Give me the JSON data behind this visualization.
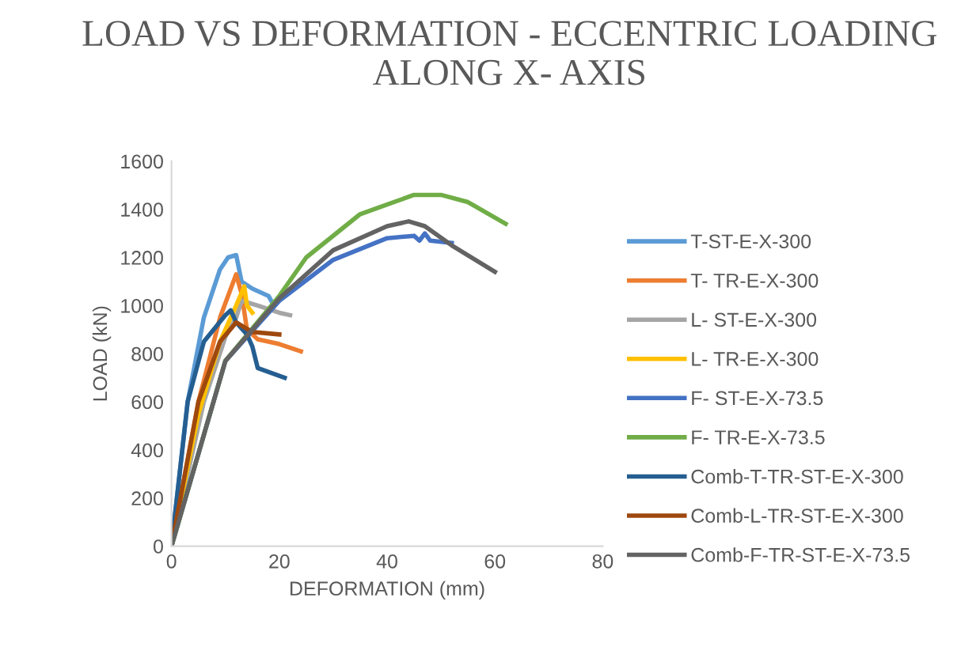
{
  "chart_data": {
    "type": "line",
    "title": "LOAD VS DEFORMATION - ECCENTRIC LOADING ALONG X- AXIS",
    "xlabel": "DEFORMATION (mm)",
    "ylabel": "LOAD (kN)",
    "xlim": [
      0,
      80
    ],
    "ylim": [
      0,
      1600
    ],
    "xticks": [
      0,
      20,
      40,
      60,
      80
    ],
    "yticks": [
      0,
      200,
      400,
      600,
      800,
      1000,
      1200,
      1400,
      1600
    ],
    "grid": false,
    "legend": "right",
    "marker": "none",
    "line_style": "solid",
    "series": [
      {
        "name": "T-ST-E-X-300",
        "color": "#5b9bd5",
        "x": [
          0,
          3,
          6,
          9,
          10.5,
          12,
          13,
          15,
          18,
          19
        ],
        "values": [
          0,
          600,
          950,
          1150,
          1200,
          1210,
          1100,
          1070,
          1040,
          1000
        ]
      },
      {
        "name": "T- TR-E-X-300",
        "color": "#ed7d31",
        "x": [
          0,
          5,
          9,
          12,
          13,
          14,
          16,
          20,
          24
        ],
        "values": [
          0,
          600,
          950,
          1130,
          1050,
          900,
          860,
          840,
          810
        ]
      },
      {
        "name": "L- ST-E-X-300",
        "color": "#a5a5a5",
        "x": [
          0,
          6,
          10,
          12,
          13,
          16,
          20,
          22
        ],
        "values": [
          0,
          600,
          870,
          950,
          1020,
          1000,
          970,
          960
        ]
      },
      {
        "name": "L- TR-E-X-300",
        "color": "#ffc000",
        "x": [
          0,
          5,
          9,
          12,
          13.5,
          14,
          15
        ],
        "values": [
          0,
          550,
          850,
          1000,
          1080,
          1000,
          970
        ]
      },
      {
        "name": "F- ST-E-X-73.5",
        "color": "#4472c4",
        "x": [
          0,
          10,
          20,
          30,
          40,
          45,
          46,
          47,
          48,
          52
        ],
        "values": [
          0,
          770,
          1020,
          1190,
          1280,
          1290,
          1270,
          1300,
          1270,
          1260
        ]
      },
      {
        "name": "F- TR-E-X-73.5",
        "color": "#70ad47",
        "x": [
          0,
          10,
          20,
          25,
          35,
          45,
          50,
          55,
          62
        ],
        "values": [
          0,
          770,
          1040,
          1200,
          1380,
          1460,
          1460,
          1430,
          1340
        ]
      },
      {
        "name": "Comb-T-TR-ST-E-X-300",
        "color": "#255e91",
        "x": [
          0,
          3,
          6,
          10,
          11,
          12,
          14,
          15,
          16,
          21
        ],
        "values": [
          0,
          600,
          850,
          960,
          980,
          930,
          880,
          830,
          740,
          700
        ]
      },
      {
        "name": "Comb-L-TR-ST-E-X-300",
        "color": "#9e480e",
        "x": [
          0,
          5,
          9,
          12,
          15,
          20
        ],
        "values": [
          0,
          600,
          850,
          930,
          890,
          880
        ]
      },
      {
        "name": "Comb-F-TR-ST-E-X-73.5",
        "color": "#636363",
        "x": [
          0,
          10,
          20,
          30,
          40,
          44,
          47,
          52,
          60
        ],
        "values": [
          0,
          770,
          1030,
          1230,
          1330,
          1350,
          1330,
          1250,
          1140
        ]
      }
    ]
  }
}
